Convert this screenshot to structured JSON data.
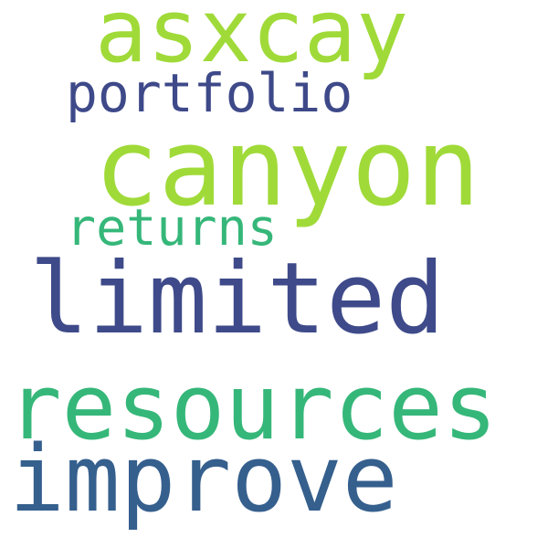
{
  "words": [
    {
      "text": "asxcay",
      "color": "#a0da39"
    },
    {
      "text": "portfolio",
      "color": "#3e4989"
    },
    {
      "text": "canyon",
      "color": "#a0da39"
    },
    {
      "text": "returns",
      "color": "#35b779"
    },
    {
      "text": "limited",
      "color": "#3e4a89"
    },
    {
      "text": "resources",
      "color": "#35b779"
    },
    {
      "text": "improve",
      "color": "#355f8d"
    }
  ]
}
